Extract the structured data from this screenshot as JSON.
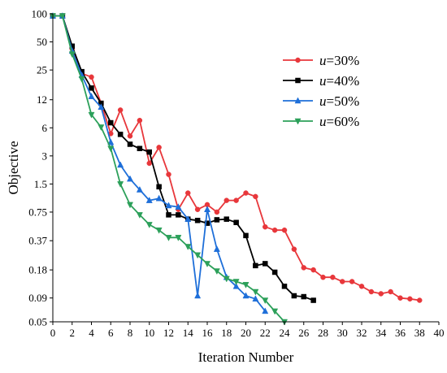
{
  "chart_data": {
    "type": "line",
    "xlabel": "Iteration Number",
    "ylabel": "Objective",
    "xlim": [
      0,
      40
    ],
    "ylim": [
      0.05,
      100
    ],
    "yscale": "log",
    "grid": false,
    "legend_position": "top-right",
    "x_ticks": [
      0,
      2,
      4,
      6,
      8,
      10,
      12,
      14,
      16,
      18,
      20,
      22,
      24,
      26,
      28,
      30,
      32,
      34,
      36,
      38,
      40
    ],
    "y_ticks": [
      {
        "value": 100,
        "label": "100"
      },
      {
        "value": 50,
        "label": "50"
      },
      {
        "value": 25,
        "label": "25"
      },
      {
        "value": 12,
        "label": "12"
      },
      {
        "value": 6,
        "label": "6"
      },
      {
        "value": 3,
        "label": "3"
      },
      {
        "value": 1.5,
        "label": "1.5"
      },
      {
        "value": 0.75,
        "label": "0.75"
      },
      {
        "value": 0.37,
        "label": "0.37"
      },
      {
        "value": 0.18,
        "label": "0.18"
      },
      {
        "value": 0.09,
        "label": "0.09"
      },
      {
        "value": 0.05,
        "label": "0.05"
      }
    ],
    "series": [
      {
        "name_prefix": "u",
        "name_suffix": "=30%",
        "color": "#e8373b",
        "marker": "circle",
        "x": [
          0,
          1,
          2,
          3,
          4,
          5,
          6,
          7,
          8,
          9,
          10,
          11,
          12,
          13,
          14,
          15,
          16,
          17,
          18,
          19,
          20,
          21,
          22,
          23,
          24,
          25,
          26,
          27,
          28,
          29,
          30,
          31,
          32,
          33,
          34,
          35,
          36,
          37,
          38
        ],
        "y": [
          95,
          95,
          42,
          23,
          21,
          11,
          5.2,
          9.3,
          4.9,
          7.2,
          2.5,
          3.7,
          1.9,
          0.8,
          1.2,
          0.8,
          0.9,
          0.75,
          1.0,
          1.0,
          1.2,
          1.1,
          0.52,
          0.48,
          0.48,
          0.3,
          0.19,
          0.18,
          0.15,
          0.15,
          0.135,
          0.135,
          0.12,
          0.105,
          0.1,
          0.105,
          0.09,
          0.088,
          0.085
        ]
      },
      {
        "name_prefix": "u",
        "name_suffix": "=40%",
        "color": "#000000",
        "marker": "square",
        "x": [
          0,
          1,
          2,
          3,
          4,
          5,
          6,
          7,
          8,
          9,
          10,
          11,
          12,
          13,
          14,
          15,
          16,
          17,
          18,
          19,
          20,
          21,
          22,
          23,
          24,
          25,
          26,
          27
        ],
        "y": [
          95,
          95,
          45,
          24,
          16,
          11,
          6.8,
          5.1,
          4.0,
          3.6,
          3.3,
          1.4,
          0.7,
          0.7,
          0.63,
          0.61,
          0.57,
          0.62,
          0.63,
          0.58,
          0.42,
          0.2,
          0.21,
          0.17,
          0.12,
          0.095,
          0.093,
          0.085
        ]
      },
      {
        "name_prefix": "u",
        "name_suffix": "=50%",
        "color": "#1e6fd9",
        "marker": "triangle-up",
        "x": [
          0,
          1,
          2,
          3,
          4,
          5,
          6,
          7,
          8,
          9,
          10,
          11,
          12,
          13,
          14,
          15,
          16,
          17,
          18,
          19,
          20,
          21,
          22
        ],
        "y": [
          95,
          95,
          40,
          22,
          13,
          10,
          4.2,
          2.4,
          1.7,
          1.3,
          1.0,
          1.05,
          0.88,
          0.85,
          0.63,
          0.095,
          0.8,
          0.3,
          0.15,
          0.12,
          0.095,
          0.088,
          0.065
        ]
      },
      {
        "name_prefix": "u",
        "name_suffix": "=60%",
        "color": "#2ca05a",
        "marker": "triangle-down",
        "x": [
          0,
          1,
          2,
          3,
          4,
          5,
          6,
          7,
          8,
          9,
          10,
          11,
          12,
          13,
          14,
          15,
          16,
          17,
          18,
          19,
          20,
          21,
          22,
          23,
          24
        ],
        "y": [
          95,
          95,
          37,
          20,
          8.3,
          6.1,
          3.6,
          1.5,
          0.9,
          0.7,
          0.55,
          0.48,
          0.4,
          0.4,
          0.32,
          0.26,
          0.21,
          0.175,
          0.145,
          0.135,
          0.125,
          0.105,
          0.085,
          0.065,
          0.05
        ]
      }
    ]
  }
}
